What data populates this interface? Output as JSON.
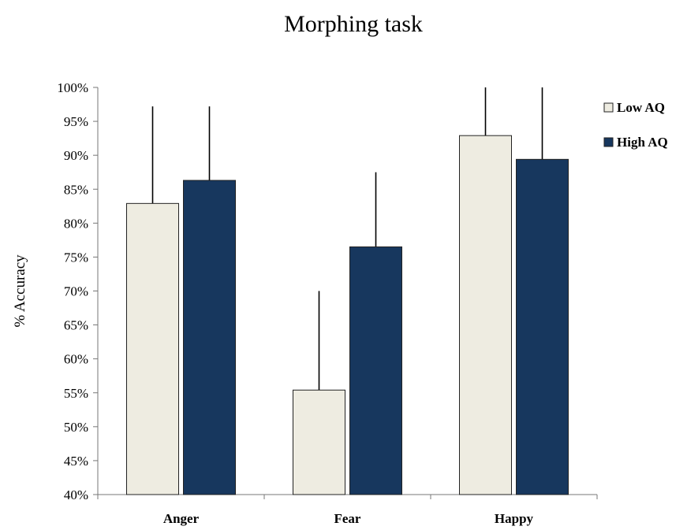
{
  "chart_data": {
    "type": "bar",
    "title": "Morphing task",
    "xlabel": "",
    "ylabel": "% Accuracy",
    "ylim": [
      40,
      100
    ],
    "ytick_step": 5,
    "categories": [
      "Anger",
      "Fear",
      "Happy"
    ],
    "series": [
      {
        "name": "Low AQ",
        "color": "#EEECE1",
        "values": [
          82.9,
          55.4,
          92.9
        ],
        "error": [
          14.3,
          14.6,
          7.1
        ]
      },
      {
        "name": "High AQ",
        "color": "#17375E",
        "values": [
          86.3,
          76.5,
          89.4
        ],
        "error": [
          10.9,
          11.0,
          10.6
        ]
      }
    ],
    "legend_position": "top-right",
    "grid": false
  }
}
